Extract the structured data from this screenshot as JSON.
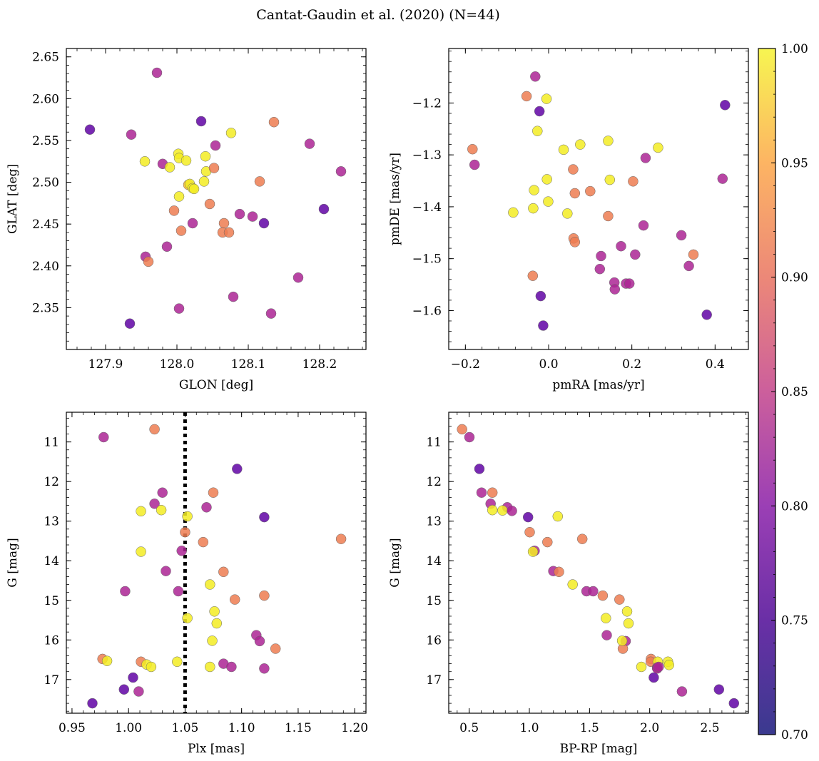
{
  "figure_title": "Cantat-Gaudin et al. (2020) (N=44)",
  "colormap": "plasma",
  "colorbar": {
    "range": [
      0.7,
      1.0
    ],
    "ticks": [
      "0.70",
      "0.75",
      "0.80",
      "0.85",
      "0.90",
      "0.95",
      "1.00"
    ]
  },
  "chart_data": [
    {
      "type": "scatter",
      "title": "",
      "xlabel": "GLON [deg]",
      "ylabel": "GLAT [deg]",
      "xlim": [
        127.845,
        128.265
      ],
      "ylim": [
        2.3,
        2.66
      ],
      "y_inverted": false,
      "xticks": [
        127.9,
        128.0,
        128.1,
        128.2
      ],
      "xtick_labels": [
        "127.9",
        "128.0",
        "128.1",
        "128.2"
      ],
      "yticks": [
        2.35,
        2.4,
        2.45,
        2.5,
        2.55,
        2.6,
        2.65
      ],
      "ytick_labels": [
        "2.35",
        "2.40",
        "2.45",
        "2.50",
        "2.55",
        "2.60",
        "2.65"
      ],
      "points": [
        [
          127.972,
          2.631,
          0.79
        ],
        [
          127.878,
          2.563,
          0.72
        ],
        [
          127.936,
          2.557,
          0.79
        ],
        [
          127.955,
          2.525,
          0.99
        ],
        [
          127.98,
          2.522,
          0.79
        ],
        [
          127.99,
          2.518,
          0.99
        ],
        [
          128.002,
          2.534,
          0.99
        ],
        [
          128.003,
          2.529,
          0.99
        ],
        [
          128.013,
          2.526,
          0.99
        ],
        [
          128.016,
          2.497,
          0.95
        ],
        [
          128.018,
          2.498,
          0.99
        ],
        [
          128.022,
          2.493,
          0.99
        ],
        [
          128.024,
          2.492,
          0.99
        ],
        [
          128.034,
          2.573,
          0.72
        ],
        [
          128.038,
          2.501,
          0.99
        ],
        [
          128.04,
          2.531,
          0.99
        ],
        [
          128.041,
          2.513,
          0.99
        ],
        [
          128.052,
          2.517,
          0.89
        ],
        [
          128.054,
          2.544,
          0.79
        ],
        [
          128.076,
          2.559,
          0.99
        ],
        [
          128.136,
          2.572,
          0.89
        ],
        [
          128.186,
          2.546,
          0.79
        ],
        [
          128.23,
          2.513,
          0.79
        ],
        [
          127.996,
          2.466,
          0.89
        ],
        [
          128.003,
          2.483,
          0.99
        ],
        [
          128.046,
          2.474,
          0.89
        ],
        [
          128.116,
          2.501,
          0.89
        ],
        [
          128.206,
          2.468,
          0.72
        ],
        [
          128.022,
          2.451,
          0.79
        ],
        [
          128.006,
          2.442,
          0.89
        ],
        [
          128.066,
          2.451,
          0.89
        ],
        [
          128.064,
          2.44,
          0.89
        ],
        [
          128.073,
          2.44,
          0.89
        ],
        [
          128.088,
          2.462,
          0.79
        ],
        [
          128.106,
          2.459,
          0.79
        ],
        [
          128.122,
          2.451,
          0.72
        ],
        [
          127.956,
          2.411,
          0.79
        ],
        [
          127.96,
          2.405,
          0.89
        ],
        [
          127.986,
          2.423,
          0.79
        ],
        [
          128.17,
          2.386,
          0.79
        ],
        [
          128.079,
          2.363,
          0.79
        ],
        [
          128.003,
          2.349,
          0.79
        ],
        [
          128.132,
          2.343,
          0.79
        ],
        [
          127.934,
          2.331,
          0.72
        ]
      ]
    },
    {
      "type": "scatter",
      "title": "",
      "xlabel": "pmRA [mas/yr]",
      "ylabel": "pmDE [mas/yr]",
      "xlim": [
        -0.24,
        0.48
      ],
      "ylim": [
        -1.675,
        -1.095
      ],
      "y_inverted": false,
      "xticks": [
        -0.2,
        0.0,
        0.2,
        0.4
      ],
      "xtick_labels": [
        "−0.2",
        "0.0",
        "0.2",
        "0.4"
      ],
      "yticks": [
        -1.6,
        -1.5,
        -1.4,
        -1.3,
        -1.2
      ],
      "ytick_labels": [
        "−1.6",
        "−1.5",
        "−1.4",
        "−1.3",
        "−1.2"
      ],
      "points": [
        [
          -0.032,
          -1.149,
          0.79
        ],
        [
          -0.053,
          -1.187,
          0.89
        ],
        [
          -0.005,
          -1.192,
          0.99
        ],
        [
          -0.022,
          -1.216,
          0.72
        ],
        [
          0.424,
          -1.204,
          0.72
        ],
        [
          -0.027,
          -1.254,
          0.99
        ],
        [
          -0.183,
          -1.289,
          0.89
        ],
        [
          -0.178,
          -1.319,
          0.79
        ],
        [
          0.036,
          -1.29,
          0.99
        ],
        [
          0.076,
          -1.28,
          0.99
        ],
        [
          0.143,
          -1.273,
          0.99
        ],
        [
          0.263,
          -1.286,
          0.99
        ],
        [
          0.233,
          -1.306,
          0.79
        ],
        [
          0.059,
          -1.328,
          0.89
        ],
        [
          0.418,
          -1.346,
          0.79
        ],
        [
          -0.004,
          -1.347,
          0.99
        ],
        [
          0.147,
          -1.348,
          0.99
        ],
        [
          0.203,
          -1.351,
          0.89
        ],
        [
          -0.035,
          -1.368,
          0.99
        ],
        [
          0.063,
          -1.374,
          0.89
        ],
        [
          0.1,
          -1.37,
          0.89
        ],
        [
          -0.001,
          -1.39,
          0.99
        ],
        [
          -0.037,
          -1.403,
          0.99
        ],
        [
          -0.085,
          -1.411,
          0.99
        ],
        [
          0.045,
          -1.413,
          0.99
        ],
        [
          0.143,
          -1.418,
          0.89
        ],
        [
          0.228,
          -1.436,
          0.79
        ],
        [
          0.319,
          -1.455,
          0.79
        ],
        [
          0.06,
          -1.461,
          0.89
        ],
        [
          0.063,
          -1.468,
          0.89
        ],
        [
          0.174,
          -1.476,
          0.79
        ],
        [
          0.126,
          -1.495,
          0.79
        ],
        [
          0.208,
          -1.492,
          0.79
        ],
        [
          0.348,
          -1.492,
          0.89
        ],
        [
          0.337,
          -1.514,
          0.79
        ],
        [
          -0.038,
          -1.533,
          0.89
        ],
        [
          0.123,
          -1.52,
          0.79
        ],
        [
          0.158,
          -1.546,
          0.79
        ],
        [
          0.186,
          -1.548,
          0.79
        ],
        [
          0.194,
          -1.548,
          0.79
        ],
        [
          0.159,
          -1.559,
          0.79
        ],
        [
          -0.019,
          -1.572,
          0.72
        ],
        [
          0.38,
          -1.608,
          0.72
        ],
        [
          -0.013,
          -1.629,
          0.72
        ]
      ]
    },
    {
      "type": "scatter",
      "title": "",
      "xlabel": "Plx [mas]",
      "ylabel": "G [mag]",
      "xlim": [
        0.945,
        1.21
      ],
      "ylim": [
        17.85,
        10.25
      ],
      "y_inverted": true,
      "xticks": [
        0.95,
        1.0,
        1.05,
        1.1,
        1.15,
        1.2
      ],
      "xtick_labels": [
        "0.95",
        "1.00",
        "1.05",
        "1.10",
        "1.15",
        "1.20"
      ],
      "yticks": [
        11,
        12,
        13,
        14,
        15,
        16,
        17
      ],
      "ytick_labels": [
        "11",
        "12",
        "13",
        "14",
        "15",
        "16",
        "17"
      ],
      "reference_line": {
        "x": 1.05,
        "style": "dotted",
        "color": "#000000"
      },
      "points": [
        [
          1.023,
          10.68,
          0.89
        ],
        [
          0.978,
          10.88,
          0.79
        ],
        [
          1.096,
          11.68,
          0.72
        ],
        [
          1.03,
          12.28,
          0.79
        ],
        [
          1.075,
          12.28,
          0.89
        ],
        [
          1.023,
          12.56,
          0.79
        ],
        [
          1.069,
          12.65,
          0.79
        ],
        [
          1.011,
          12.75,
          0.99
        ],
        [
          1.029,
          12.72,
          0.99
        ],
        [
          1.052,
          12.88,
          0.99
        ],
        [
          1.12,
          12.9,
          0.72
        ],
        [
          1.05,
          13.28,
          0.89
        ],
        [
          1.066,
          13.53,
          0.89
        ],
        [
          1.188,
          13.45,
          0.89
        ],
        [
          1.047,
          13.75,
          0.79
        ],
        [
          1.011,
          13.77,
          0.99
        ],
        [
          1.033,
          14.26,
          0.79
        ],
        [
          1.084,
          14.28,
          0.89
        ],
        [
          1.072,
          14.6,
          0.99
        ],
        [
          0.997,
          14.77,
          0.79
        ],
        [
          1.044,
          14.77,
          0.79
        ],
        [
          1.12,
          14.88,
          0.89
        ],
        [
          1.094,
          14.98,
          0.89
        ],
        [
          1.052,
          15.45,
          0.99
        ],
        [
          1.076,
          15.28,
          0.99
        ],
        [
          1.078,
          15.58,
          0.99
        ],
        [
          1.074,
          16.02,
          0.99
        ],
        [
          1.113,
          15.88,
          0.79
        ],
        [
          1.116,
          16.03,
          0.79
        ],
        [
          1.13,
          16.22,
          0.89
        ],
        [
          0.977,
          16.48,
          0.89
        ],
        [
          0.981,
          16.53,
          0.99
        ],
        [
          1.011,
          16.55,
          0.89
        ],
        [
          1.016,
          16.62,
          0.99
        ],
        [
          1.02,
          16.68,
          0.99
        ],
        [
          1.043,
          16.55,
          0.99
        ],
        [
          1.084,
          16.6,
          0.79
        ],
        [
          1.091,
          16.68,
          0.79
        ],
        [
          1.12,
          16.72,
          0.79
        ],
        [
          1.004,
          16.95,
          0.72
        ],
        [
          0.996,
          17.25,
          0.72
        ],
        [
          1.009,
          17.3,
          0.79
        ],
        [
          0.968,
          17.6,
          0.72
        ],
        [
          1.072,
          16.68,
          0.99
        ]
      ]
    },
    {
      "type": "scatter",
      "title": "",
      "xlabel": "BP-RP [mag]",
      "ylabel": "G [mag]",
      "xlim": [
        0.33,
        2.82
      ],
      "ylim": [
        17.85,
        10.25
      ],
      "y_inverted": true,
      "xticks": [
        0.5,
        1.0,
        1.5,
        2.0,
        2.5
      ],
      "xtick_labels": [
        "0.5",
        "1.0",
        "1.5",
        "2.0",
        "2.5"
      ],
      "yticks": [
        11,
        12,
        13,
        14,
        15,
        16,
        17
      ],
      "ytick_labels": [
        "11",
        "12",
        "13",
        "14",
        "15",
        "16",
        "17"
      ],
      "points": [
        [
          0.441,
          10.68,
          0.89
        ],
        [
          0.502,
          10.88,
          0.79
        ],
        [
          0.585,
          11.68,
          0.72
        ],
        [
          0.603,
          12.28,
          0.79
        ],
        [
          0.693,
          12.28,
          0.89
        ],
        [
          0.678,
          12.56,
          0.79
        ],
        [
          0.817,
          12.65,
          0.79
        ],
        [
          0.693,
          12.72,
          0.99
        ],
        [
          0.777,
          12.73,
          0.99
        ],
        [
          0.855,
          12.74,
          0.79
        ],
        [
          0.989,
          12.9,
          0.72
        ],
        [
          1.236,
          12.88,
          0.99
        ],
        [
          1.003,
          13.28,
          0.89
        ],
        [
          1.15,
          13.53,
          0.89
        ],
        [
          1.44,
          13.45,
          0.89
        ],
        [
          1.044,
          13.75,
          0.79
        ],
        [
          1.03,
          13.77,
          0.99
        ],
        [
          1.199,
          14.26,
          0.79
        ],
        [
          1.246,
          14.28,
          0.89
        ],
        [
          1.36,
          14.6,
          0.99
        ],
        [
          1.475,
          14.77,
          0.79
        ],
        [
          1.53,
          14.77,
          0.79
        ],
        [
          1.61,
          14.88,
          0.89
        ],
        [
          1.749,
          14.98,
          0.89
        ],
        [
          1.636,
          15.45,
          0.99
        ],
        [
          1.812,
          15.28,
          0.99
        ],
        [
          1.824,
          15.58,
          0.99
        ],
        [
          1.643,
          15.88,
          0.79
        ],
        [
          1.8,
          16.03,
          0.79
        ],
        [
          1.777,
          16.22,
          0.89
        ],
        [
          1.771,
          16.02,
          0.99
        ],
        [
          2.011,
          16.48,
          0.89
        ],
        [
          2.009,
          16.55,
          0.89
        ],
        [
          2.067,
          16.55,
          0.99
        ],
        [
          2.152,
          16.55,
          0.99
        ],
        [
          2.161,
          16.63,
          0.99
        ],
        [
          2.061,
          16.7,
          0.79
        ],
        [
          2.063,
          16.72,
          0.79
        ],
        [
          1.931,
          16.68,
          0.99
        ],
        [
          2.034,
          16.95,
          0.72
        ],
        [
          2.576,
          17.25,
          0.72
        ],
        [
          2.268,
          17.3,
          0.79
        ],
        [
          2.7,
          17.6,
          0.72
        ],
        [
          2.075,
          16.68,
          0.79
        ]
      ]
    }
  ]
}
